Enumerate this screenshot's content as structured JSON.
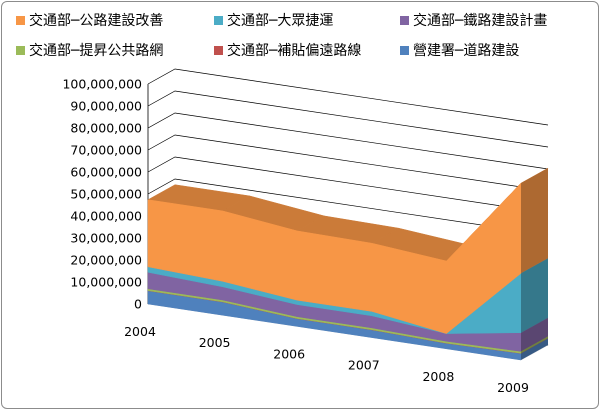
{
  "chart_data": {
    "type": "area",
    "title": "",
    "xlabel": "",
    "ylabel": "",
    "x": [
      "2004",
      "2005",
      "2006",
      "2007",
      "2008",
      "2009"
    ],
    "ylim": [
      0,
      100000000
    ],
    "yticks": [
      "0",
      "10,000,000",
      "20,000,000",
      "30,000,000",
      "40,000,000",
      "50,000,000",
      "60,000,000",
      "70,000,000",
      "80,000,000",
      "90,000,000",
      "100,000,000"
    ],
    "legend_position": "top",
    "grid": true,
    "stacked": true,
    "series": [
      {
        "name": "營建署─道路建設",
        "color": "#4f81bd",
        "values": [
          6000000,
          6000000,
          3500000,
          3500000,
          2500000,
          3000000
        ]
      },
      {
        "name": "交通部─補貼偏遠路線",
        "color": "#c0504d",
        "values": [
          100000,
          100000,
          100000,
          100000,
          100000,
          100000
        ]
      },
      {
        "name": "交通部─提昇公共路網",
        "color": "#9bbb59",
        "values": [
          800000,
          800000,
          800000,
          800000,
          800000,
          800000
        ]
      },
      {
        "name": "交通部─鐵路建設計畫",
        "color": "#8064a2",
        "values": [
          7500000,
          6000000,
          5500000,
          5500000,
          3500000,
          8500000
        ]
      },
      {
        "name": "交通部─大眾捷運",
        "color": "#4bacc6",
        "values": [
          2500000,
          2500000,
          2000000,
          2000000,
          0,
          27000000
        ]
      },
      {
        "name": "交通部─公路建設改善",
        "color": "#f79646",
        "values": [
          30500000,
          32000000,
          31500000,
          31000000,
          33000000,
          41000000
        ]
      }
    ],
    "legend_order": [
      "交通部─公路建設改善",
      "交通部─大眾捷運",
      "交通部─鐵路建設計畫",
      "交通部─提昇公共路網",
      "交通部─補貼偏遠路線",
      "營建署─道路建設"
    ]
  }
}
